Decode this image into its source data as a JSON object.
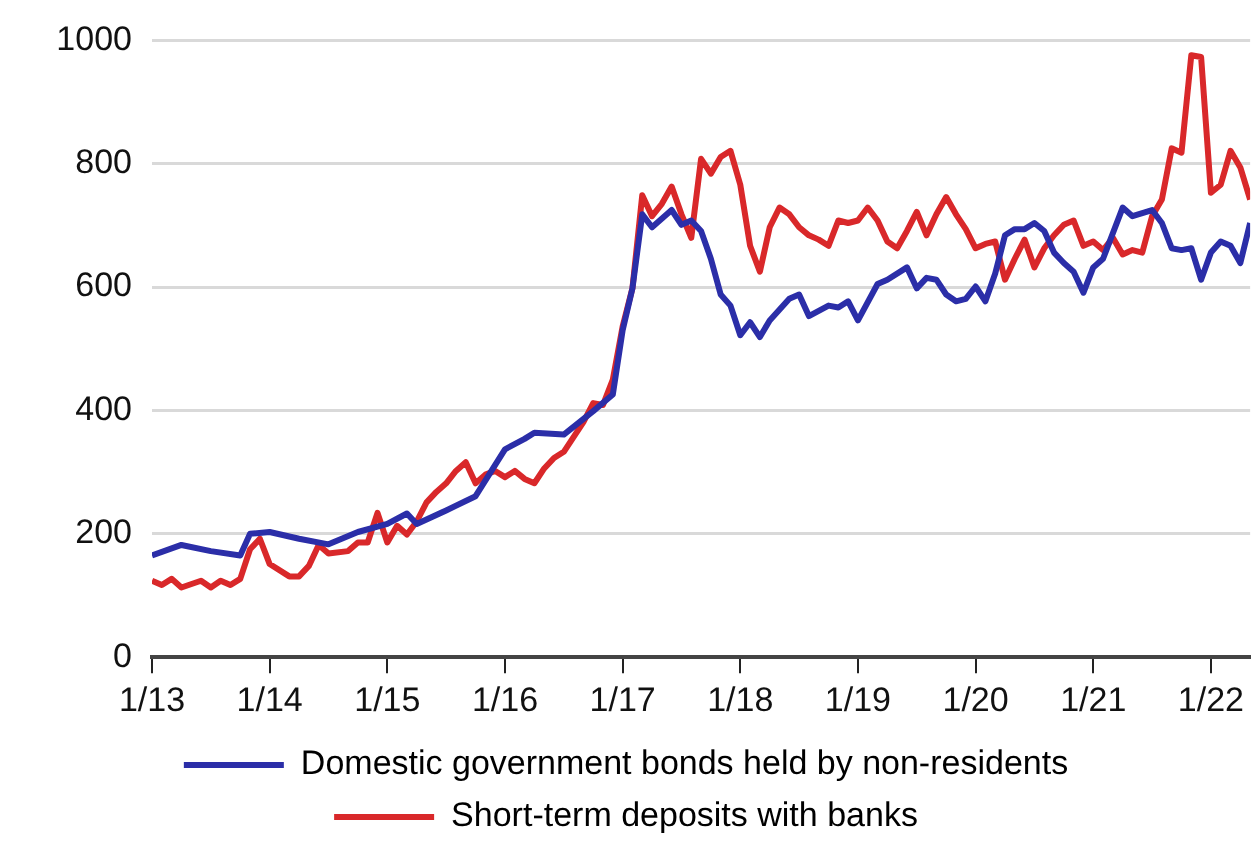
{
  "chart_data": {
    "type": "line",
    "x": [
      "2013-01",
      "2013-04",
      "2013-07",
      "2013-10",
      "2013-11",
      "2014-01",
      "2014-04",
      "2014-07",
      "2014-10",
      "2015-01",
      "2015-03",
      "2015-04",
      "2015-07",
      "2015-10",
      "2016-01",
      "2016-03",
      "2016-04",
      "2016-07",
      "2016-10",
      "2016-12",
      "2017-01",
      "2017-02",
      "2017-03",
      "2017-04",
      "2017-06",
      "2017-07",
      "2017-08",
      "2017-09",
      "2017-10",
      "2017-11",
      "2017-12",
      "2018-01",
      "2018-02",
      "2018-03",
      "2018-04",
      "2018-06",
      "2018-07",
      "2018-08",
      "2018-10",
      "2018-11",
      "2018-12",
      "2019-01",
      "2019-03",
      "2019-04",
      "2019-06",
      "2019-07",
      "2019-08",
      "2019-09",
      "2019-10",
      "2019-11",
      "2019-12",
      "2020-01",
      "2020-02",
      "2020-03",
      "2020-04",
      "2020-05",
      "2020-06",
      "2020-07",
      "2020-08",
      "2020-09",
      "2020-10",
      "2020-11",
      "2020-12",
      "2021-01",
      "2021-02",
      "2021-04",
      "2021-05",
      "2021-07",
      "2021-08",
      "2021-09",
      "2021-10",
      "2021-11",
      "2021-12",
      "2022-01",
      "2022-02",
      "2022-03",
      "2022-04",
      "2022-05"
    ],
    "series": [
      {
        "name": "Domestic government bonds held by non-residents",
        "color": "#2b2ea8",
        "values": [
          165,
          182,
          172,
          165,
          200,
          203,
          192,
          183,
          203,
          216,
          233,
          216,
          238,
          261,
          337,
          354,
          364,
          361,
          399,
          426,
          530,
          598,
          718,
          697,
          725,
          701,
          708,
          691,
          646,
          588,
          570,
          522,
          543,
          519,
          546,
          581,
          588,
          553,
          570,
          567,
          577,
          546,
          605,
          612,
          632,
          598,
          615,
          612,
          588,
          577,
          581,
          601,
          577,
          622,
          684,
          694,
          694,
          704,
          691,
          656,
          639,
          625,
          591,
          632,
          646,
          729,
          715,
          725,
          704,
          663,
          660,
          663,
          612,
          656,
          674,
          667,
          639,
          704
        ]
      },
      {
        "name": "Short-term deposits with banks",
        "color": "#d9282a",
        "x": [
          "2013-01",
          "2013-02",
          "2013-03",
          "2013-04",
          "2013-06",
          "2013-07",
          "2013-08",
          "2013-09",
          "2013-10",
          "2013-11",
          "2013-12",
          "2014-01",
          "2014-03",
          "2014-04",
          "2014-05",
          "2014-06",
          "2014-07",
          "2014-09",
          "2014-10",
          "2014-11",
          "2014-12",
          "2015-01",
          "2015-02",
          "2015-03",
          "2015-04",
          "2015-05",
          "2015-06",
          "2015-07",
          "2015-08",
          "2015-09",
          "2015-10",
          "2015-11",
          "2015-12",
          "2016-01",
          "2016-02",
          "2016-03",
          "2016-04",
          "2016-05",
          "2016-06",
          "2016-07",
          "2016-09",
          "2016-10",
          "2016-11",
          "2016-12",
          "2017-01",
          "2017-02",
          "2017-03",
          "2017-04",
          "2017-05",
          "2017-06",
          "2017-07",
          "2017-08",
          "2017-09",
          "2017-10",
          "2017-11",
          "2017-12",
          "2018-01",
          "2018-02",
          "2018-03",
          "2018-04",
          "2018-05",
          "2018-06",
          "2018-07",
          "2018-08",
          "2018-09",
          "2018-10",
          "2018-11",
          "2018-12",
          "2019-01",
          "2019-02",
          "2019-03",
          "2019-04",
          "2019-05",
          "2019-06",
          "2019-07",
          "2019-08",
          "2019-09",
          "2019-10",
          "2019-11",
          "2019-12",
          "2020-01",
          "2020-02",
          "2020-03",
          "2020-04",
          "2020-05",
          "2020-06",
          "2020-07",
          "2020-08",
          "2020-09",
          "2020-10",
          "2020-11",
          "2020-12",
          "2021-01",
          "2021-02",
          "2021-03",
          "2021-04",
          "2021-05",
          "2021-06",
          "2021-07",
          "2021-08",
          "2021-09",
          "2021-10",
          "2021-11",
          "2021-12",
          "2022-01",
          "2022-02",
          "2022-03",
          "2022-04",
          "2022-05"
        ],
        "values": [
          124,
          117,
          127,
          113,
          124,
          113,
          124,
          117,
          127,
          175,
          192,
          151,
          131,
          131,
          148,
          182,
          168,
          172,
          186,
          186,
          234,
          186,
          213,
          199,
          220,
          251,
          268,
          282,
          302,
          316,
          282,
          296,
          302,
          292,
          302,
          289,
          282,
          306,
          323,
          333,
          381,
          412,
          409,
          450,
          536,
          598,
          749,
          715,
          735,
          763,
          718,
          680,
          808,
          784,
          811,
          821,
          766,
          667,
          625,
          697,
          729,
          718,
          697,
          684,
          677,
          667,
          708,
          704,
          708,
          729,
          708,
          674,
          663,
          691,
          722,
          684,
          718,
          746,
          718,
          694,
          663,
          670,
          674,
          612,
          646,
          677,
          632,
          663,
          684,
          701,
          708,
          667,
          674,
          660,
          680,
          653,
          660,
          656,
          715,
          742,
          825,
          818,
          976,
          973,
          753,
          766,
          821,
          794,
          742
        ]
      }
    ],
    "xlim": [
      "2013-01",
      "2022-05"
    ],
    "xticks": [
      {
        "value": "2013-01",
        "label": "1/13"
      },
      {
        "value": "2014-01",
        "label": "1/14"
      },
      {
        "value": "2015-01",
        "label": "1/15"
      },
      {
        "value": "2016-01",
        "label": "1/16"
      },
      {
        "value": "2017-01",
        "label": "1/17"
      },
      {
        "value": "2018-01",
        "label": "1/18"
      },
      {
        "value": "2019-01",
        "label": "1/19"
      },
      {
        "value": "2020-01",
        "label": "1/20"
      },
      {
        "value": "2021-01",
        "label": "1/21"
      },
      {
        "value": "2022-01",
        "label": "1/22"
      }
    ],
    "ylim": [
      0,
      1000
    ],
    "yticks": [
      0,
      200,
      400,
      600,
      800,
      1000
    ],
    "grid": "y",
    "legend": "bottom",
    "marker": "none",
    "line_style": "solid"
  }
}
